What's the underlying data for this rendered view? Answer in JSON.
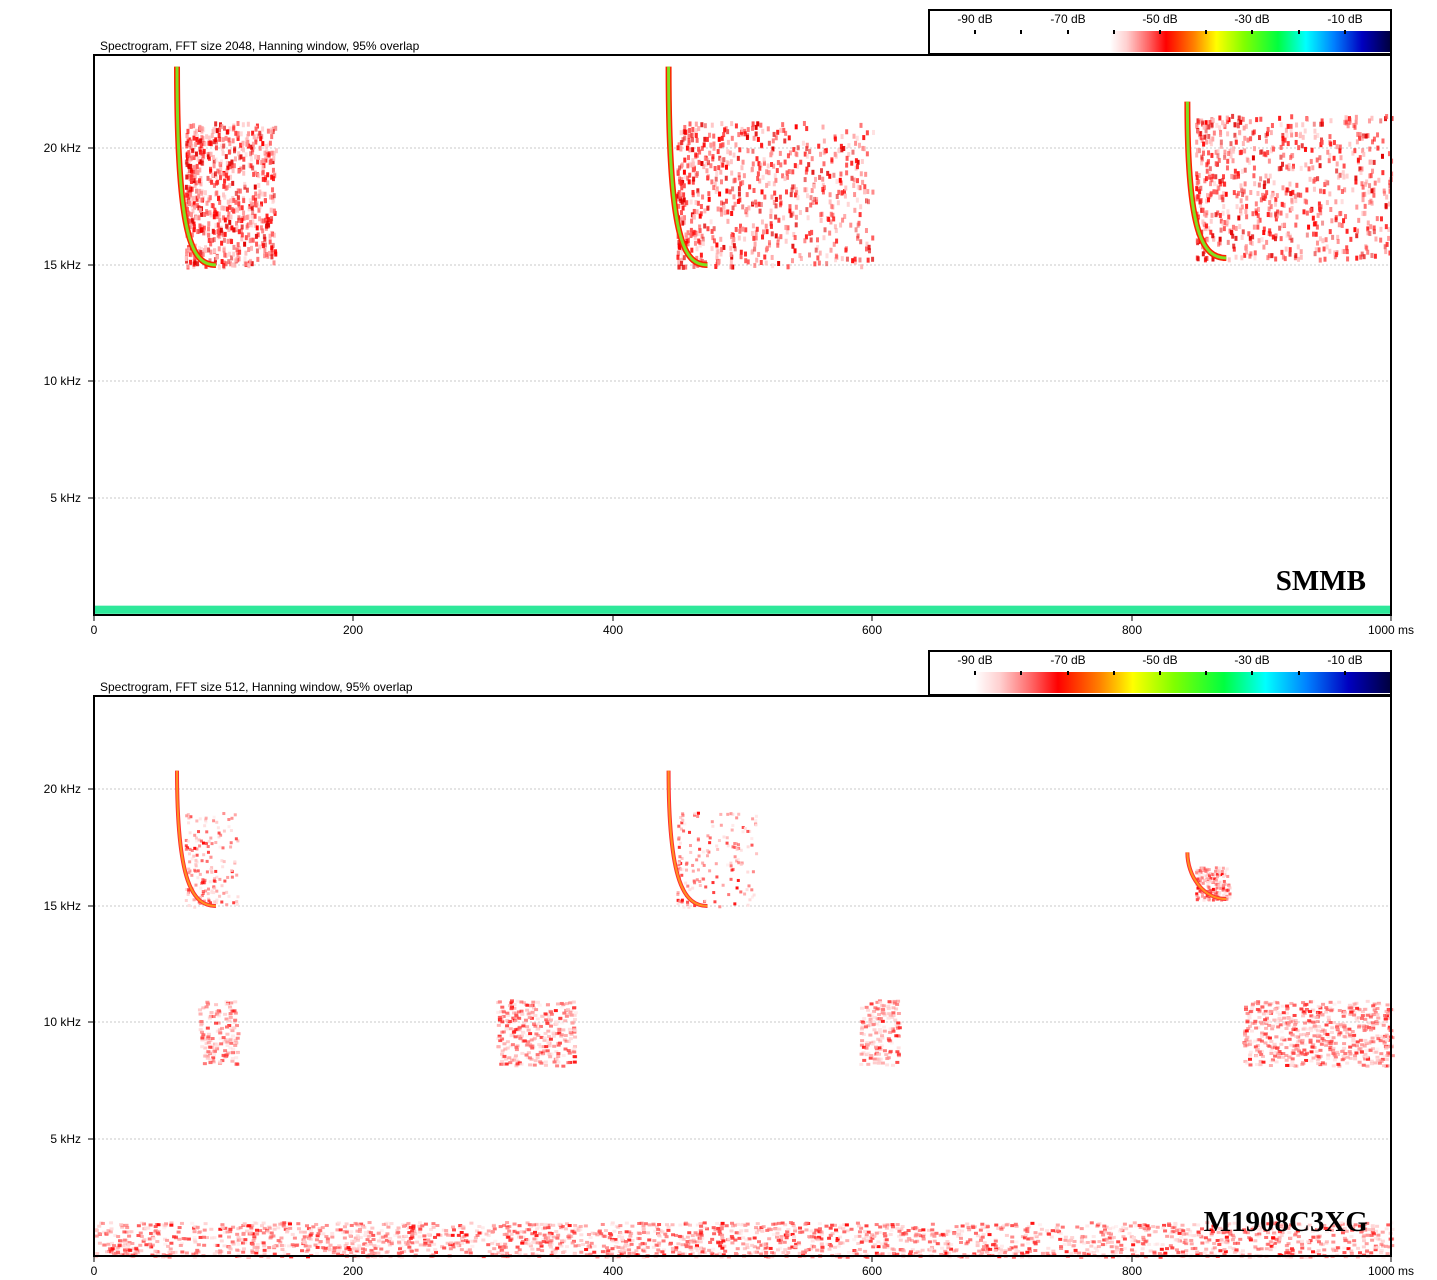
{
  "colors": {
    "scale": [
      "#ffffff",
      "#ffd6d6",
      "#ff8080",
      "#ff0000",
      "#ff8000",
      "#ffff00",
      "#80ff00",
      "#00ff40",
      "#00ffff",
      "#0080ff",
      "#0000c0",
      "#000040"
    ],
    "grid": "#c8c8c8",
    "baseline": "#2ee89a"
  },
  "panels": [
    {
      "caption": "Spectrogram, FFT size 2048, Hanning window, 95% overlap",
      "device": "SMMB",
      "colorbar_labels": [
        "-90 dB",
        "-70 dB",
        "-50 dB",
        "-30 dB",
        "-10 dB"
      ],
      "x_ticks": [
        "0",
        "200",
        "400",
        "600",
        "800",
        "1000 ms"
      ],
      "y_ticks": [
        "5 kHz",
        "10 kHz",
        "15 kHz",
        "20 kHz"
      ]
    },
    {
      "caption": "Spectrogram, FFT size 512, Hanning window, 95% overlap",
      "device": "M1908C3XG",
      "colorbar_labels": [
        "-90 dB",
        "-70 dB",
        "-50 dB",
        "-30 dB",
        "-10 dB"
      ],
      "x_ticks": [
        "0",
        "200",
        "400",
        "600",
        "800",
        "1000 ms"
      ],
      "y_ticks": [
        "5 kHz",
        "10 kHz",
        "15 kHz",
        "20 kHz"
      ]
    }
  ],
  "chart_data": [
    {
      "type": "heatmap",
      "title": "Spectrogram, FFT size 2048, Hanning window, 95% overlap",
      "label": "SMMB",
      "x_unit": "ms",
      "y_unit": "kHz",
      "xlim": [
        0,
        1000
      ],
      "ylim": [
        0,
        24
      ],
      "x_ticks": [
        0,
        200,
        400,
        600,
        800,
        1000
      ],
      "y_ticks": [
        5,
        10,
        15,
        20
      ],
      "colorbar_db": [
        -90,
        -70,
        -50,
        -30,
        -10
      ],
      "grid": true,
      "calls": [
        {
          "t_start": 64,
          "t_end": 140,
          "f_low": 15,
          "f_high": 23.5,
          "peak_db": -30
        },
        {
          "t_start": 443,
          "t_end": 600,
          "f_low": 15,
          "f_high": 23.5,
          "peak_db": -30
        },
        {
          "t_start": 843,
          "t_end": 1000,
          "f_low": 15.3,
          "f_high": 22,
          "peak_db": -32
        }
      ],
      "low_band": {
        "f_low": 0,
        "f_high": 0.3,
        "level_db": -35
      }
    },
    {
      "type": "heatmap",
      "title": "Spectrogram, FFT size 512, Hanning window, 95% overlap",
      "label": "M1908C3XG",
      "x_unit": "ms",
      "y_unit": "kHz",
      "xlim": [
        0,
        1000
      ],
      "ylim": [
        0,
        24
      ],
      "x_ticks": [
        0,
        200,
        400,
        600,
        800,
        1000
      ],
      "y_ticks": [
        5,
        10,
        15,
        20
      ],
      "colorbar_db": [
        -90,
        -70,
        -50,
        -30,
        -10
      ],
      "grid": true,
      "calls": [
        {
          "t_start": 64,
          "t_end": 110,
          "f_low": 15,
          "f_high": 20.8,
          "peak_db": -60
        },
        {
          "t_start": 443,
          "t_end": 510,
          "f_low": 15,
          "f_high": 20.8,
          "peak_db": -55
        },
        {
          "t_start": 843,
          "t_end": 875,
          "f_low": 15.3,
          "f_high": 17.3,
          "peak_db": -62
        }
      ],
      "noise_band_10khz": {
        "f_center": 9.5,
        "clusters_ms": [
          [
            80,
            110
          ],
          [
            310,
            370
          ],
          [
            590,
            620
          ],
          [
            885,
            1000
          ]
        ]
      },
      "low_band": {
        "f_low": 0,
        "f_high": 1.5,
        "level_db": -65
      }
    }
  ]
}
